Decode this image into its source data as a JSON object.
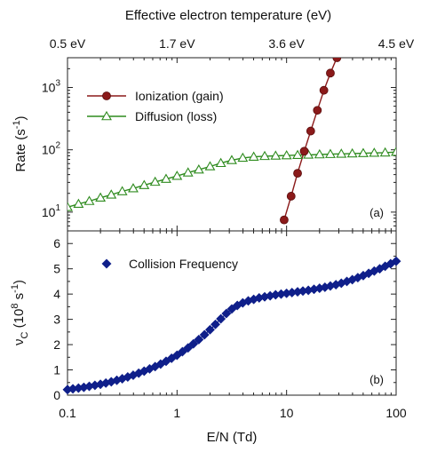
{
  "top_axis": {
    "title": "Effective electron temperature (eV)",
    "ticks": [
      {
        "label": "0.5 eV",
        "en": 0.1
      },
      {
        "label": "1.7 eV",
        "en": 1.0
      },
      {
        "label": "3.6 eV",
        "en": 10.0
      },
      {
        "label": "4.5 eV",
        "en": 100.0
      }
    ]
  },
  "chart_data": [
    {
      "panel": "(a)",
      "type": "line",
      "xscale": "log",
      "yscale": "log",
      "xlim": [
        0.1,
        100
      ],
      "ylim": [
        5,
        3000
      ],
      "ylabel": "Rate (s",
      "ylabel_sup": "-1",
      "ylabel_close": ")",
      "yticks": [
        {
          "base": "10",
          "exp": "1",
          "value": 10
        },
        {
          "base": "10",
          "exp": "2",
          "value": 100
        },
        {
          "base": "10",
          "exp": "3",
          "value": 1000
        }
      ],
      "legend_position": "top-left",
      "series": [
        {
          "name": "Ionization (gain)",
          "color": "#8b1a1a",
          "marker": "circle",
          "x": [
            9.5,
            11.0,
            12.6,
            14.5,
            16.6,
            19.1,
            21.9,
            25.1,
            28.8
          ],
          "y": [
            7.5,
            18,
            42,
            95,
            200,
            430,
            900,
            1700,
            3000
          ]
        },
        {
          "name": "Diffusion (loss)",
          "color": "#2e8b1e",
          "marker": "triangle-open",
          "x": [
            0.1,
            0.126,
            0.158,
            0.2,
            0.251,
            0.316,
            0.398,
            0.501,
            0.631,
            0.794,
            1.0,
            1.26,
            1.58,
            2.0,
            2.51,
            3.16,
            3.98,
            5.01,
            6.31,
            7.94,
            10.0,
            12.6,
            15.8,
            20.0,
            25.1,
            31.6,
            39.8,
            50.1,
            63.1,
            79.4,
            100.0
          ],
          "y": [
            12,
            13.5,
            15,
            17,
            19,
            21.5,
            24,
            27,
            30.5,
            34,
            38,
            43,
            48,
            54,
            61,
            68,
            74,
            77,
            79,
            80,
            81,
            82,
            83,
            84,
            85,
            86,
            87,
            88,
            89,
            90,
            92
          ]
        }
      ]
    },
    {
      "panel": "(b)",
      "type": "line",
      "xscale": "log",
      "yscale": "linear",
      "xlim": [
        0.1,
        100
      ],
      "ylim": [
        0,
        6.5
      ],
      "xlabel": "E/N (Td)",
      "xticks": [
        "0.1",
        "1",
        "10",
        "100"
      ],
      "ylabel": "ν",
      "ylabel_sub": "C",
      "ylabel_unit": " (10",
      "ylabel_unit_sup": "8",
      "ylabel_unit_s": " s",
      "ylabel_unit_sup2": "-1",
      "ylabel_close": ")",
      "yticks": [
        "0",
        "1",
        "2",
        "3",
        "4",
        "5",
        "6"
      ],
      "legend_position": "top-left",
      "series": [
        {
          "name": "Collision Frequency",
          "color": "#0f1f8a",
          "marker": "diamond",
          "x": [
            0.1,
            0.112,
            0.126,
            0.141,
            0.158,
            0.178,
            0.2,
            0.224,
            0.251,
            0.282,
            0.316,
            0.355,
            0.398,
            0.447,
            0.501,
            0.562,
            0.631,
            0.708,
            0.794,
            0.891,
            1.0,
            1.12,
            1.26,
            1.41,
            1.58,
            1.78,
            2.0,
            2.24,
            2.51,
            2.82,
            3.16,
            3.55,
            3.98,
            4.47,
            5.01,
            5.62,
            6.31,
            7.08,
            7.94,
            8.91,
            10.0,
            11.2,
            12.6,
            14.1,
            15.8,
            17.8,
            20.0,
            22.4,
            25.1,
            28.2,
            31.6,
            35.5,
            39.8,
            44.7,
            50.1,
            56.2,
            63.1,
            70.8,
            79.4,
            89.1,
            100.0
          ],
          "y": [
            0.22,
            0.25,
            0.28,
            0.31,
            0.35,
            0.39,
            0.43,
            0.48,
            0.53,
            0.59,
            0.65,
            0.72,
            0.79,
            0.87,
            0.95,
            1.04,
            1.13,
            1.23,
            1.34,
            1.46,
            1.58,
            1.72,
            1.87,
            2.03,
            2.2,
            2.39,
            2.59,
            2.8,
            3.02,
            3.23,
            3.41,
            3.55,
            3.65,
            3.73,
            3.79,
            3.85,
            3.89,
            3.93,
            3.97,
            4.0,
            4.03,
            4.06,
            4.09,
            4.12,
            4.15,
            4.19,
            4.23,
            4.27,
            4.32,
            4.37,
            4.43,
            4.5,
            4.57,
            4.65,
            4.73,
            4.82,
            4.91,
            5.0,
            5.1,
            5.2,
            5.3
          ]
        }
      ]
    }
  ]
}
